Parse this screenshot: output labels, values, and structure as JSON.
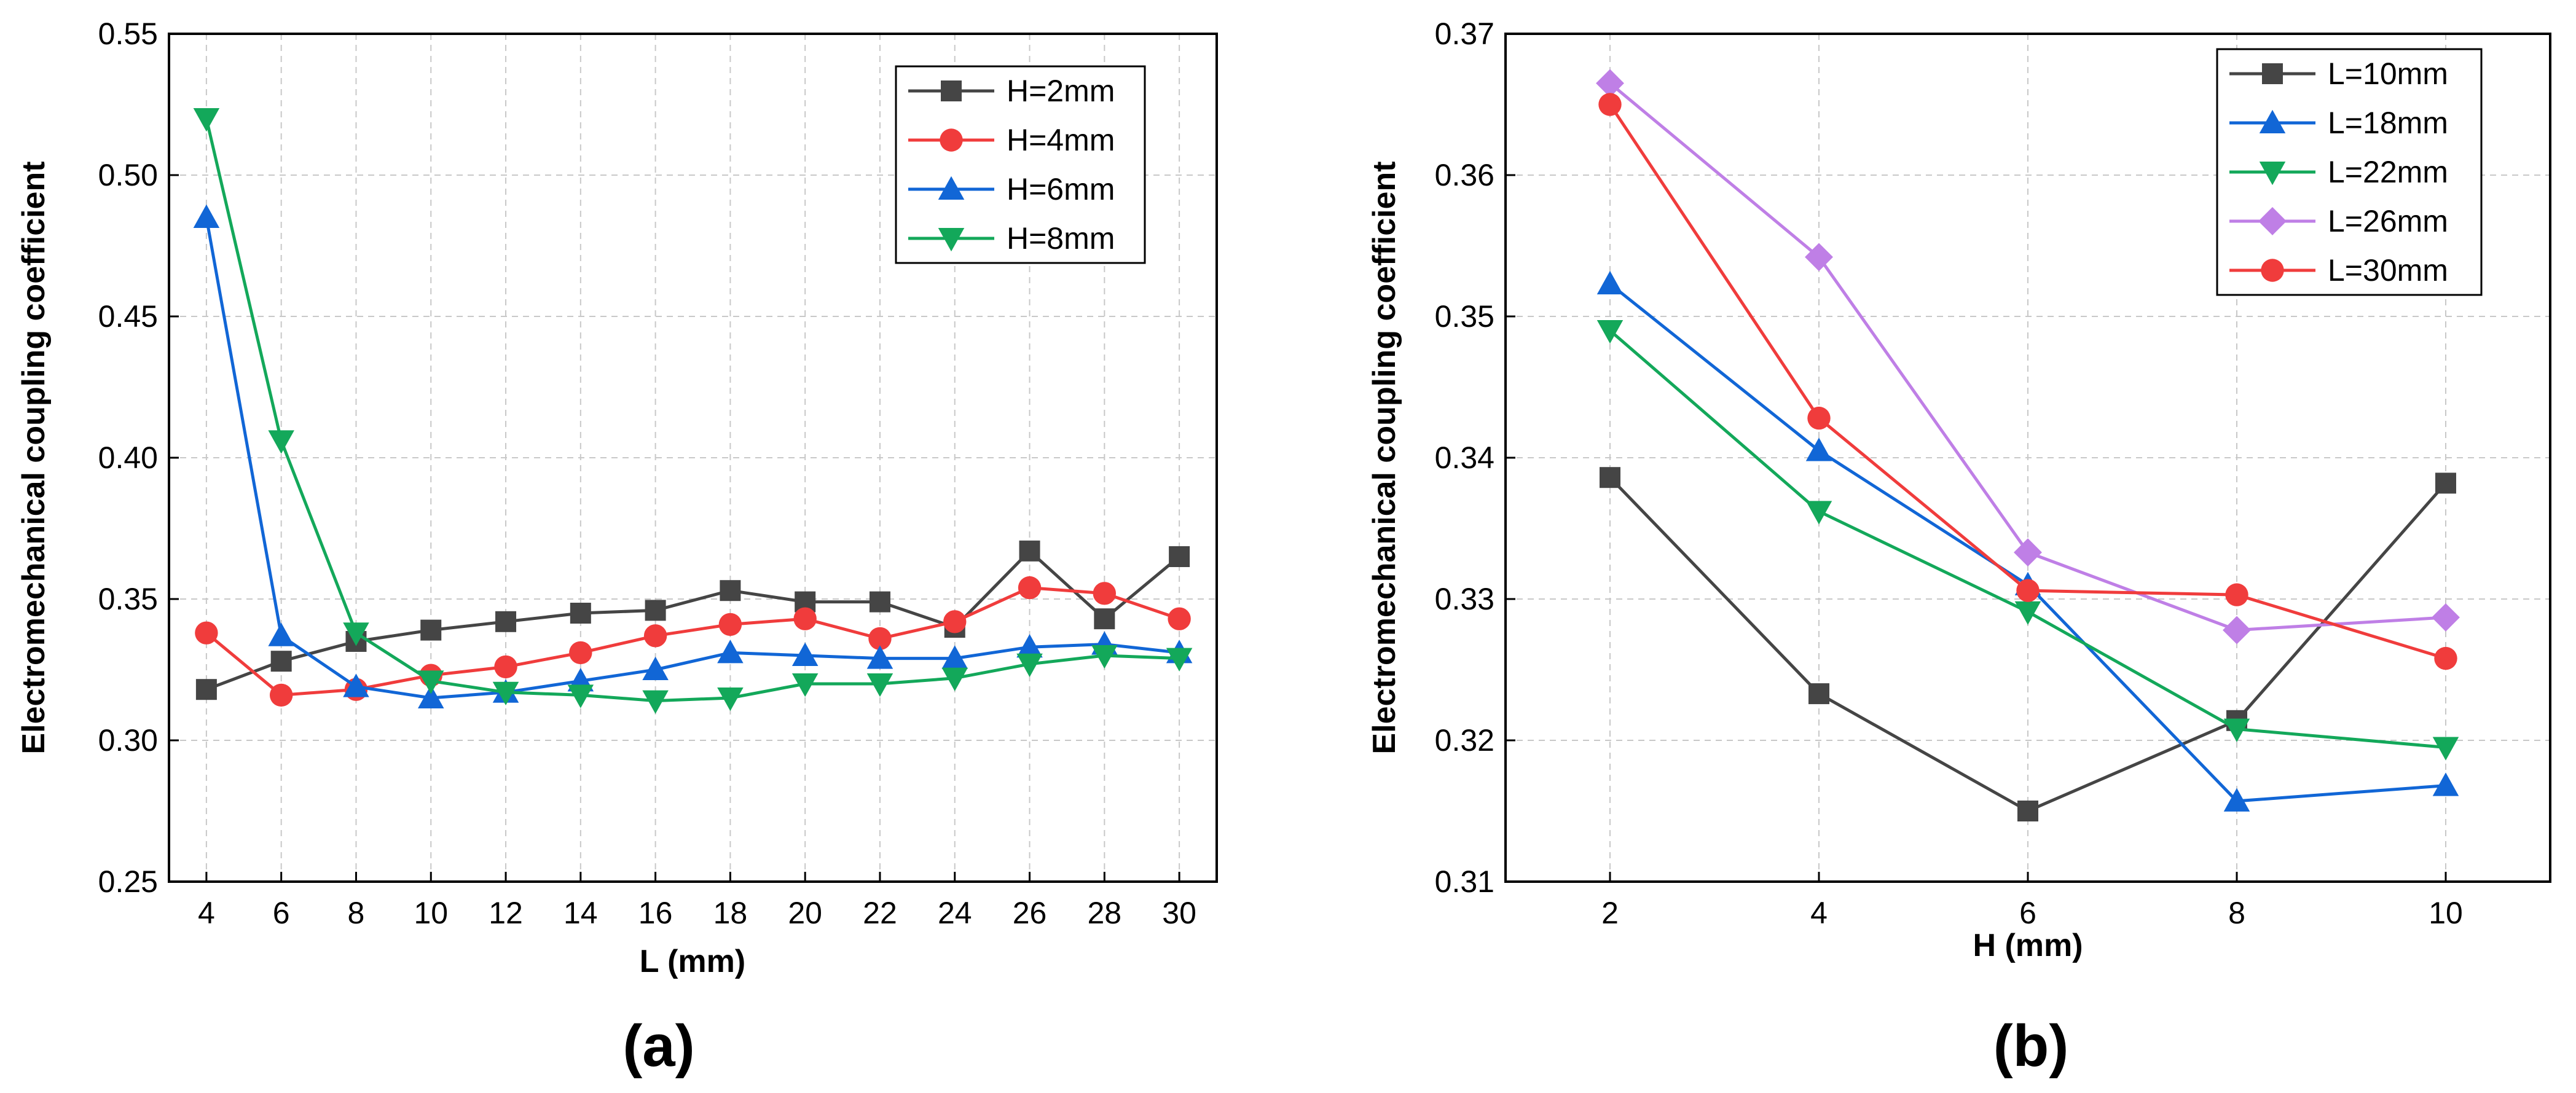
{
  "chart_data": [
    {
      "panel_label": "(a)",
      "type": "line",
      "xlabel": "L (mm)",
      "ylabel": "Electromechanical coupling coefficient",
      "x": [
        4,
        6,
        8,
        10,
        12,
        14,
        16,
        18,
        20,
        22,
        24,
        26,
        28,
        30
      ],
      "x_ticks": [
        "4",
        "6",
        "8",
        "10",
        "12",
        "14",
        "16",
        "18",
        "20",
        "22",
        "24",
        "26",
        "28",
        "30"
      ],
      "xlim": [
        3,
        31
      ],
      "ylim": [
        0.25,
        0.55
      ],
      "y_ticks": [
        "0.25",
        "0.30",
        "0.35",
        "0.40",
        "0.45",
        "0.50",
        "0.55"
      ],
      "legend_position": "top-right",
      "grid": true,
      "series": [
        {
          "name": "H=2mm",
          "color": "#454545",
          "marker": "square",
          "values": [
            0.318,
            0.328,
            0.335,
            0.339,
            0.342,
            0.345,
            0.346,
            0.353,
            0.349,
            0.349,
            0.34,
            0.367,
            0.343,
            0.365
          ]
        },
        {
          "name": "H=4mm",
          "color": "#f03c3c",
          "marker": "circle",
          "values": [
            0.338,
            0.316,
            0.318,
            0.323,
            0.326,
            0.331,
            0.337,
            0.341,
            0.343,
            0.336,
            0.342,
            0.354,
            0.352,
            0.343
          ]
        },
        {
          "name": "H=6mm",
          "color": "#1166d6",
          "marker": "triangle-up",
          "values": [
            0.485,
            0.337,
            0.319,
            0.315,
            0.317,
            0.321,
            0.325,
            0.331,
            0.33,
            0.329,
            0.329,
            0.333,
            0.334,
            0.331
          ]
        },
        {
          "name": "H=8mm",
          "color": "#13a85a",
          "marker": "triangle-down",
          "values": [
            0.52,
            0.406,
            0.338,
            0.321,
            0.317,
            0.316,
            0.314,
            0.315,
            0.32,
            0.32,
            0.322,
            0.327,
            0.33,
            0.329
          ]
        }
      ]
    },
    {
      "panel_label": "(b)",
      "type": "line",
      "xlabel": "H (mm)",
      "ylabel": "Electromechanical coupling coefficient",
      "x": [
        2,
        4,
        6,
        8,
        10
      ],
      "x_ticks": [
        "2",
        "4",
        "6",
        "8",
        "10"
      ],
      "xlim": [
        1,
        11
      ],
      "ylim": [
        0.31,
        0.37
      ],
      "y_ticks": [
        "0.31",
        "0.32",
        "0.33",
        "0.34",
        "0.35",
        "0.36",
        "0.37"
      ],
      "legend_position": "top-right",
      "grid": true,
      "series": [
        {
          "name": "L=10mm",
          "color": "#454545",
          "marker": "square",
          "values": [
            0.3386,
            0.3233,
            0.315,
            0.3214,
            0.3382
          ]
        },
        {
          "name": "L=18mm",
          "color": "#1166d6",
          "marker": "triangle-up",
          "values": [
            0.3523,
            0.3405,
            0.331,
            0.3157,
            0.3168
          ]
        },
        {
          "name": "L=22mm",
          "color": "#13a85a",
          "marker": "triangle-down",
          "values": [
            0.349,
            0.3362,
            0.3291,
            0.3208,
            0.3195
          ]
        },
        {
          "name": "L=26mm",
          "color": "#bf7fe6",
          "marker": "diamond",
          "values": [
            0.3665,
            0.3542,
            0.3333,
            0.3278,
            0.3287
          ]
        },
        {
          "name": "L=30mm",
          "color": "#f03c3c",
          "marker": "circle",
          "values": [
            0.365,
            0.3428,
            0.3306,
            0.3303,
            0.3258
          ]
        }
      ]
    }
  ]
}
